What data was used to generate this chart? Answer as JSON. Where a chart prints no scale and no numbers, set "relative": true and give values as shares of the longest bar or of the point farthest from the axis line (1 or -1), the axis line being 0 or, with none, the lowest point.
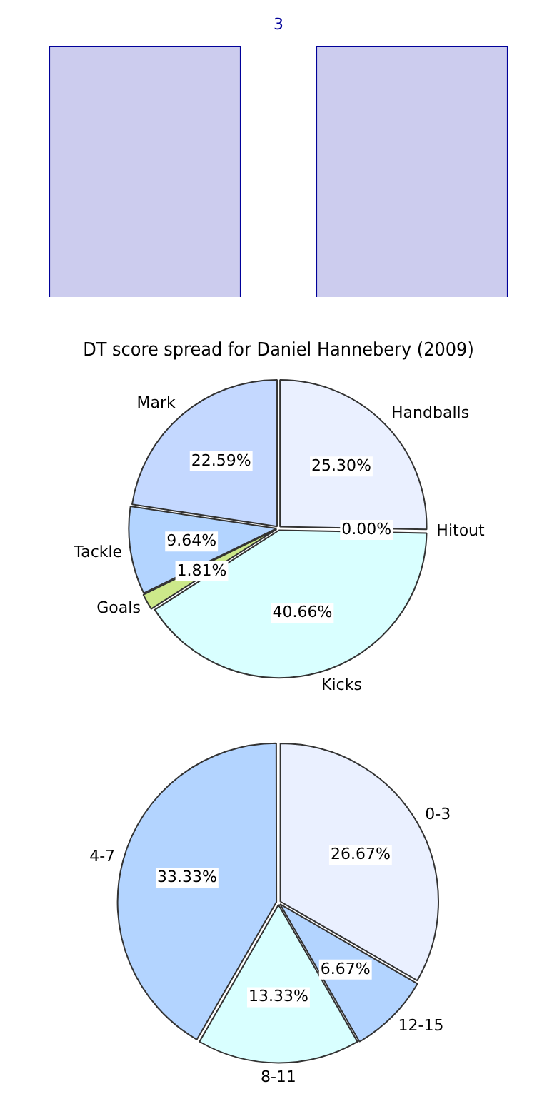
{
  "chart_data": [
    {
      "type": "bar",
      "relative": true,
      "categories": [
        null,
        null
      ],
      "values": [
        1,
        1
      ],
      "color": "#ccccee",
      "annotations": [
        "3"
      ]
    },
    {
      "type": "pie",
      "title": "DT score spread for Daniel Hannebery (2009)",
      "categories": [
        "Handballs",
        "Hitout",
        "Kicks",
        "Goals",
        "Tackle",
        "Mark"
      ],
      "values": [
        25.3,
        0.0,
        40.66,
        1.81,
        9.64,
        22.59
      ],
      "colors": [
        "#eaf0ff",
        "#c4d8ff",
        "#d9ffff",
        "#cce88a",
        "#b3d4ff",
        "#c4d8ff"
      ],
      "value_labels": [
        "25.30%",
        "0.00%",
        "40.66%",
        "1.81%",
        "9.64%",
        "22.59%"
      ]
    },
    {
      "type": "pie",
      "categories": [
        "0-3",
        "12-15",
        "8-11",
        "4-7"
      ],
      "values": [
        26.67,
        6.67,
        13.33,
        33.33
      ],
      "colors": [
        "#eaf0ff",
        "#b3d4ff",
        "#d9ffff",
        "#b3d4ff"
      ],
      "value_labels": [
        "26.67%",
        "6.67%",
        "13.33%",
        "33.33%"
      ]
    }
  ]
}
